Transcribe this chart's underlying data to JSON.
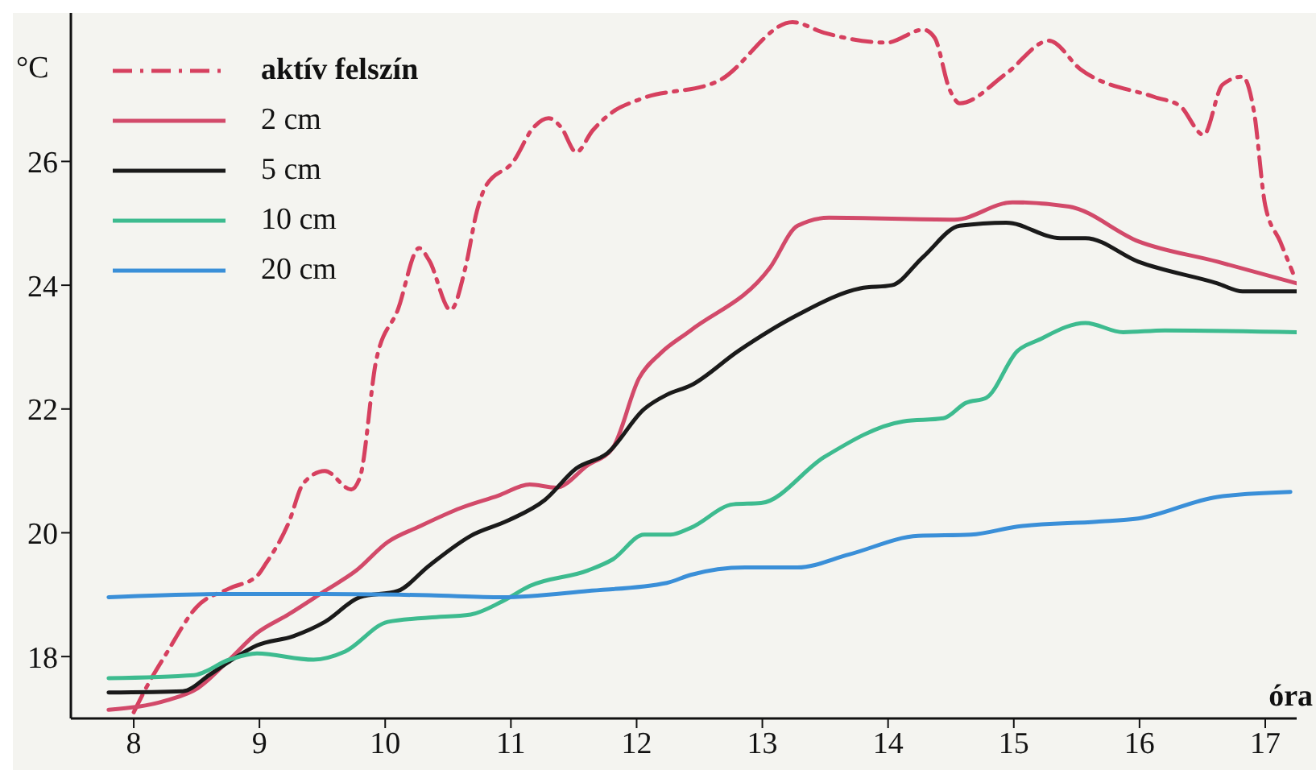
{
  "chart_data": {
    "type": "line",
    "xlabel": "óra",
    "ylabel": "°C",
    "xlim": [
      7.5,
      17.25
    ],
    "xticks": [
      8,
      9,
      10,
      11,
      12,
      13,
      14,
      15,
      16,
      17
    ],
    "ylim": [
      17,
      28.4
    ],
    "yticks": [
      18,
      20,
      22,
      24,
      26
    ],
    "grid": false,
    "legend": "top left",
    "marker": "none",
    "series": [
      {
        "name": "aktív felszín",
        "color": "#d6405f",
        "line_style": "dashdot",
        "x": [
          8.0,
          8.1,
          8.26,
          8.5,
          8.76,
          8.98,
          9.05,
          9.23,
          9.35,
          9.52,
          9.73,
          9.8,
          9.93,
          10.1,
          10.27,
          10.35,
          10.52,
          10.64,
          10.73,
          10.8,
          11.02,
          11.18,
          11.3,
          11.4,
          11.52,
          11.65,
          11.81,
          12.02,
          12.65,
          13.24,
          13.49,
          13.99,
          14.28,
          14.37,
          14.49,
          14.57,
          14.94,
          15.28,
          15.53,
          16.12,
          16.32,
          16.51,
          16.66,
          16.82,
          16.91,
          17.0,
          17.12,
          17.22
        ],
        "values": [
          17.1,
          17.5,
          18.05,
          18.8,
          19.1,
          19.3,
          19.5,
          20.15,
          20.8,
          21.0,
          20.7,
          20.9,
          22.8,
          23.6,
          24.6,
          24.4,
          23.6,
          24.3,
          25.2,
          25.6,
          26.0,
          26.55,
          26.7,
          26.55,
          26.15,
          26.5,
          26.8,
          27.0,
          27.3,
          28.25,
          28.08,
          27.92,
          28.13,
          28.0,
          27.16,
          26.94,
          27.42,
          27.95,
          27.49,
          27.04,
          26.9,
          26.43,
          27.24,
          27.37,
          26.81,
          25.29,
          24.7,
          24.2
        ]
      },
      {
        "name": "2 cm",
        "color": "#d24a6a",
        "line_style": "solid",
        "x": [
          7.8,
          8.26,
          8.51,
          8.76,
          8.98,
          9.23,
          9.52,
          9.77,
          10.02,
          10.27,
          10.6,
          10.9,
          11.15,
          11.36,
          11.61,
          11.81,
          12.02,
          12.19,
          12.43,
          13.06,
          13.28,
          13.53,
          14.53,
          14.99,
          15.44,
          15.99,
          16.62,
          17.25
        ],
        "values": [
          17.14,
          17.29,
          17.49,
          17.95,
          18.38,
          18.68,
          19.06,
          19.39,
          19.85,
          20.1,
          20.4,
          20.6,
          20.78,
          20.73,
          21.09,
          21.37,
          22.5,
          22.9,
          23.27,
          24.28,
          24.96,
          25.09,
          25.06,
          25.34,
          25.27,
          24.71,
          24.38,
          24.03
        ]
      },
      {
        "name": "5 cm",
        "color": "#1a1a1a",
        "line_style": "solid",
        "x": [
          7.8,
          8.39,
          8.6,
          8.76,
          8.98,
          9.27,
          9.52,
          9.8,
          10.1,
          10.35,
          10.68,
          10.98,
          11.27,
          11.52,
          11.77,
          12.06,
          12.24,
          12.43,
          12.81,
          13.28,
          13.78,
          14.03,
          14.28,
          14.57,
          14.94,
          15.37,
          15.57,
          15.99,
          16.62,
          16.82,
          17.25
        ],
        "values": [
          17.42,
          17.44,
          17.7,
          17.92,
          18.18,
          18.33,
          18.56,
          18.96,
          19.06,
          19.47,
          19.95,
          20.2,
          20.53,
          21.04,
          21.29,
          22.0,
          22.23,
          22.38,
          22.94,
          23.52,
          23.95,
          24.0,
          24.46,
          24.96,
          25.01,
          24.76,
          24.76,
          24.38,
          24.03,
          23.9,
          23.9
        ]
      },
      {
        "name": "10 cm",
        "color": "#3dbb8f",
        "line_style": "solid",
        "x": [
          7.8,
          8.48,
          8.76,
          8.98,
          9.43,
          9.68,
          10.02,
          10.35,
          10.68,
          10.93,
          11.15,
          11.61,
          11.81,
          12.06,
          12.27,
          12.43,
          12.77,
          12.99,
          13.49,
          14.12,
          14.44,
          14.62,
          14.78,
          15.03,
          15.19,
          15.57,
          15.87,
          16.2,
          17.25
        ],
        "values": [
          17.65,
          17.7,
          17.95,
          18.05,
          17.95,
          18.08,
          18.56,
          18.63,
          18.68,
          18.89,
          19.14,
          19.39,
          19.57,
          19.97,
          19.97,
          20.08,
          20.46,
          20.48,
          21.22,
          21.8,
          21.85,
          22.1,
          22.18,
          22.94,
          23.11,
          23.39,
          23.24,
          23.27,
          23.24
        ]
      },
      {
        "name": "20 cm",
        "color": "#3a8fd8",
        "line_style": "solid",
        "x": [
          7.8,
          8.68,
          9.52,
          10.35,
          10.93,
          11.61,
          12.24,
          12.43,
          12.86,
          13.28,
          13.69,
          14.24,
          14.66,
          15.03,
          15.66,
          15.99,
          16.62,
          17.2
        ],
        "values": [
          18.96,
          19.01,
          19.01,
          18.99,
          18.96,
          19.06,
          19.19,
          19.32,
          19.44,
          19.44,
          19.65,
          19.95,
          19.97,
          20.1,
          20.18,
          20.23,
          20.58,
          20.66
        ]
      }
    ]
  }
}
